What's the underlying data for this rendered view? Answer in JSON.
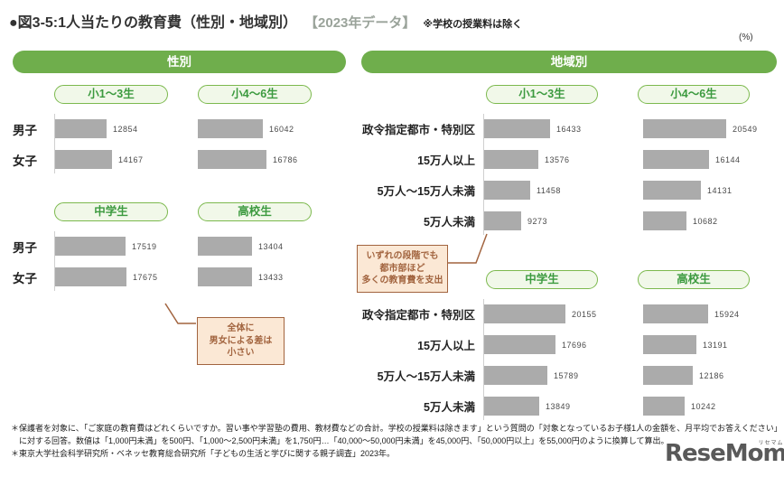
{
  "title": {
    "main": "●図3-5:1人当たりの教育費（性別・地域別）",
    "year_tag": "【2023年データ】",
    "note": "※学校の授業料は除く"
  },
  "unit_label": "(%)",
  "section_headers": {
    "gender": "性別",
    "region": "地域別"
  },
  "chart_data": [
    {
      "type": "bar",
      "orientation": "horizontal",
      "group": "性別",
      "title": "小1〜3生",
      "categories": [
        "男子",
        "女子"
      ],
      "values": [
        12854,
        14167
      ]
    },
    {
      "type": "bar",
      "orientation": "horizontal",
      "group": "性別",
      "title": "小4〜6生",
      "categories": [
        "男子",
        "女子"
      ],
      "values": [
        16042,
        16786
      ]
    },
    {
      "type": "bar",
      "orientation": "horizontal",
      "group": "性別",
      "title": "中学生",
      "categories": [
        "男子",
        "女子"
      ],
      "values": [
        17519,
        17675
      ]
    },
    {
      "type": "bar",
      "orientation": "horizontal",
      "group": "性別",
      "title": "高校生",
      "categories": [
        "男子",
        "女子"
      ],
      "values": [
        13404,
        13433
      ]
    },
    {
      "type": "bar",
      "orientation": "horizontal",
      "group": "地域別",
      "title": "小1〜3生",
      "categories": [
        "政令指定都市・特別区",
        "15万人以上",
        "5万人〜15万人未満",
        "5万人未満"
      ],
      "values": [
        16433,
        13576,
        11458,
        9273
      ]
    },
    {
      "type": "bar",
      "orientation": "horizontal",
      "group": "地域別",
      "title": "小4〜6生",
      "categories": [
        "政令指定都市・特別区",
        "15万人以上",
        "5万人〜15万人未満",
        "5万人未満"
      ],
      "values": [
        20549,
        16144,
        14131,
        10682
      ]
    },
    {
      "type": "bar",
      "orientation": "horizontal",
      "group": "地域別",
      "title": "中学生",
      "categories": [
        "政令指定都市・特別区",
        "15万人以上",
        "5万人〜15万人未満",
        "5万人未満"
      ],
      "values": [
        20155,
        17696,
        15789,
        13849
      ]
    },
    {
      "type": "bar",
      "orientation": "horizontal",
      "group": "地域別",
      "title": "高校生",
      "categories": [
        "政令指定都市・特別区",
        "15万人以上",
        "5万人〜15万人未満",
        "5万人未満"
      ],
      "values": [
        15924,
        13191,
        12186,
        10242
      ]
    }
  ],
  "callouts": {
    "gender": {
      "lines": [
        "全体に",
        "男女による差は",
        "小さい"
      ]
    },
    "region": {
      "lines": [
        "いずれの段階でも",
        "都市部ほど",
        "多くの教育費を支出"
      ]
    }
  },
  "footnotes": [
    "＊保護者を対象に、「ご家庭の教育費はどれくらいですか。習い事や学習塾の費用、教材費などの合計。学校の授業料は除きます」という質問の「対象となっているお子様1人の金額を、月平均でお答えください」に対する回答。数値は「1,000円未満」を500円、「1,000〜2,500円未満」を1,750円…「40,000〜50,000円未満」を45,000円、「50,000円以上」を55,000円のように換算して算出。",
    "＊東京大学社会科学研究所・ベネッセ教育総合研究所「子どもの生活と学びに関する親子調査」2023年。"
  ],
  "logo": {
    "text": "ReseMom",
    "suffix": ".",
    "kana": "リセマム"
  },
  "colors": {
    "section_header_green": "#6fae4c",
    "pill_border_green": "#7cb94e",
    "pill_bg_green": "#f1f8e9",
    "pill_text_green": "#3c9a3f",
    "bar_gray": "#ababab",
    "callout_brown": "#a2643f",
    "callout_bg": "#fbe8d5"
  }
}
